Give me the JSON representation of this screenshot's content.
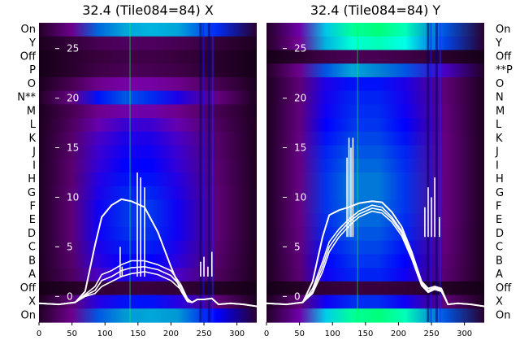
{
  "chart_data": [
    {
      "type": "heatmap",
      "title": "32.4 (Tile084=84) X",
      "xlim": [
        0,
        330
      ],
      "x_ticks": [
        "0",
        "50",
        "100",
        "150",
        "200",
        "250",
        "300"
      ],
      "overlay_y_ticks": [
        "0",
        "5",
        "10",
        "15",
        "20",
        "25"
      ],
      "overlay_ylim": [
        -2.6,
        27.6
      ],
      "row_labels": [
        "On",
        "Y",
        "Off",
        "P",
        "O",
        "N",
        "M",
        "L",
        "K",
        "J",
        "I",
        "H",
        "G",
        "F",
        "E",
        "D",
        "C",
        "B",
        "A",
        "Off",
        "X",
        "On"
      ],
      "row_label_marks": {
        "N": "** "
      },
      "colormap": [
        "#000000",
        "#3a0040",
        "#7a00a0",
        "#0000ff",
        "#0090d0",
        "#00ffff",
        "#00ff00"
      ],
      "rows": [
        {
          "label": "On",
          "levels": [
            0.1,
            0.3,
            0.62,
            0.7,
            0.72,
            0.7,
            0.55,
            0.12
          ]
        },
        {
          "label": "Y",
          "levels": [
            0.08,
            0.15,
            0.2,
            0.22,
            0.22,
            0.2,
            0.15,
            0.08
          ]
        },
        {
          "label": "Off",
          "levels": [
            0.06,
            0.12,
            0.16,
            0.18,
            0.18,
            0.16,
            0.12,
            0.06
          ]
        },
        {
          "label": "P",
          "levels": [
            0.06,
            0.12,
            0.18,
            0.2,
            0.2,
            0.18,
            0.12,
            0.06
          ]
        },
        {
          "label": "O",
          "levels": [
            0.08,
            0.2,
            0.3,
            0.34,
            0.34,
            0.3,
            0.2,
            0.08
          ]
        },
        {
          "label": "N",
          "levels": [
            0.1,
            0.28,
            0.52,
            0.6,
            0.55,
            0.46,
            0.28,
            0.08
          ]
        },
        {
          "label": "M",
          "levels": [
            0.08,
            0.2,
            0.3,
            0.35,
            0.35,
            0.3,
            0.2,
            0.08
          ]
        },
        {
          "label": "L",
          "levels": [
            0.08,
            0.22,
            0.36,
            0.42,
            0.42,
            0.36,
            0.22,
            0.08
          ]
        },
        {
          "label": "K",
          "levels": [
            0.08,
            0.24,
            0.4,
            0.46,
            0.46,
            0.4,
            0.24,
            0.08
          ]
        },
        {
          "label": "J",
          "levels": [
            0.08,
            0.24,
            0.42,
            0.48,
            0.48,
            0.42,
            0.24,
            0.08
          ]
        },
        {
          "label": "I",
          "levels": [
            0.08,
            0.25,
            0.43,
            0.5,
            0.5,
            0.43,
            0.25,
            0.08
          ]
        },
        {
          "label": "H",
          "levels": [
            0.08,
            0.25,
            0.45,
            0.52,
            0.52,
            0.45,
            0.25,
            0.08
          ]
        },
        {
          "label": "G",
          "levels": [
            0.08,
            0.26,
            0.46,
            0.54,
            0.54,
            0.46,
            0.26,
            0.08
          ]
        },
        {
          "label": "F",
          "levels": [
            0.08,
            0.26,
            0.48,
            0.56,
            0.56,
            0.48,
            0.26,
            0.08
          ]
        },
        {
          "label": "E",
          "levels": [
            0.08,
            0.26,
            0.48,
            0.56,
            0.56,
            0.48,
            0.26,
            0.08
          ]
        },
        {
          "label": "D",
          "levels": [
            0.08,
            0.26,
            0.48,
            0.55,
            0.55,
            0.48,
            0.26,
            0.08
          ]
        },
        {
          "label": "C",
          "levels": [
            0.08,
            0.25,
            0.46,
            0.53,
            0.53,
            0.46,
            0.25,
            0.08
          ]
        },
        {
          "label": "B",
          "levels": [
            0.08,
            0.24,
            0.44,
            0.5,
            0.5,
            0.44,
            0.24,
            0.08
          ]
        },
        {
          "label": "A",
          "levels": [
            0.08,
            0.22,
            0.4,
            0.46,
            0.46,
            0.4,
            0.22,
            0.08
          ]
        },
        {
          "label": "Off",
          "levels": [
            0.06,
            0.1,
            0.14,
            0.16,
            0.16,
            0.14,
            0.1,
            0.06
          ]
        },
        {
          "label": "X",
          "levels": [
            0.08,
            0.26,
            0.45,
            0.52,
            0.52,
            0.45,
            0.26,
            0.08
          ]
        },
        {
          "label": "On",
          "levels": [
            0.1,
            0.3,
            0.6,
            0.68,
            0.7,
            0.68,
            0.5,
            0.12
          ]
        }
      ],
      "level_x": [
        0,
        50,
        90,
        130,
        170,
        210,
        270,
        330
      ],
      "overlay_series": [
        {
          "x": [
            0,
            30,
            55,
            70,
            85,
            95,
            110,
            125,
            140,
            160,
            180,
            200,
            215,
            225,
            232,
            240,
            250,
            262,
            272,
            290,
            310,
            330
          ],
          "y": [
            -0.7,
            -0.8,
            -0.6,
            0.5,
            5.2,
            8.0,
            9.2,
            9.8,
            9.6,
            9.0,
            6.5,
            3.0,
            0.6,
            -0.5,
            -0.6,
            -0.3,
            -0.3,
            -0.2,
            -0.8,
            -0.7,
            -0.8,
            -1.0
          ]
        },
        {
          "x": [
            0,
            30,
            55,
            70,
            85,
            95,
            110,
            125,
            140,
            160,
            180,
            200,
            215,
            225,
            232,
            240,
            250,
            262,
            272,
            290,
            310,
            330
          ],
          "y": [
            -0.7,
            -0.8,
            -0.6,
            0.2,
            1.0,
            2.2,
            2.6,
            3.2,
            3.6,
            3.6,
            3.2,
            2.6,
            1.2,
            -0.2,
            -0.6,
            -0.3,
            -0.3,
            -0.2,
            -0.8,
            -0.7,
            -0.8,
            -1.0
          ]
        },
        {
          "x": [
            0,
            30,
            55,
            70,
            85,
            95,
            110,
            125,
            140,
            160,
            180,
            200,
            215,
            225,
            232,
            240,
            250,
            262,
            272,
            290,
            310,
            330
          ],
          "y": [
            -0.7,
            -0.8,
            -0.6,
            0.1,
            0.6,
            1.6,
            2.0,
            2.6,
            2.9,
            3.0,
            2.7,
            2.1,
            1.0,
            -0.3,
            -0.6,
            -0.3,
            -0.3,
            -0.2,
            -0.8,
            -0.7,
            -0.8,
            -1.0
          ]
        },
        {
          "x": [
            0,
            30,
            55,
            70,
            85,
            95,
            110,
            125,
            140,
            160,
            180,
            200,
            215,
            225,
            232,
            240,
            250,
            262,
            272,
            290,
            310,
            330
          ],
          "y": [
            -0.7,
            -0.8,
            -0.6,
            0.0,
            0.3,
            1.0,
            1.5,
            2.0,
            2.3,
            2.5,
            2.2,
            1.6,
            0.7,
            -0.4,
            -0.6,
            -0.3,
            -0.3,
            -0.2,
            -0.8,
            -0.7,
            -0.8,
            -1.0
          ]
        }
      ]
    },
    {
      "type": "heatmap",
      "title": "32.4 (Tile084=84) Y",
      "xlim": [
        0,
        330
      ],
      "x_ticks": [
        "0",
        "50",
        "100",
        "150",
        "200",
        "250",
        "300"
      ],
      "overlay_y_ticks": [
        "0",
        "5",
        "10",
        "15",
        "20",
        "25"
      ],
      "overlay_ylim": [
        -2.6,
        27.6
      ],
      "row_labels": [
        "On",
        "Y",
        "Off",
        "P",
        "O",
        "N",
        "M",
        "L",
        "K",
        "J",
        "I",
        "H",
        "G",
        "F",
        "E",
        "D",
        "C",
        "B",
        "A",
        "Off",
        "X",
        "On"
      ],
      "row_label_marks": {
        "P": " **"
      },
      "colormap": [
        "#000000",
        "#3a0040",
        "#7a00a0",
        "#0000ff",
        "#0090d0",
        "#00ffff",
        "#00ff00"
      ],
      "rows": [
        {
          "label": "On",
          "levels": [
            0.1,
            0.35,
            0.75,
            0.9,
            0.92,
            0.88,
            0.6,
            0.12
          ]
        },
        {
          "label": "Y",
          "levels": [
            0.1,
            0.32,
            0.72,
            0.86,
            0.88,
            0.85,
            0.58,
            0.12
          ]
        },
        {
          "label": "Off",
          "levels": [
            0.06,
            0.12,
            0.18,
            0.2,
            0.2,
            0.18,
            0.12,
            0.06
          ]
        },
        {
          "label": "P",
          "levels": [
            0.1,
            0.3,
            0.6,
            0.7,
            0.65,
            0.6,
            0.4,
            0.1
          ]
        },
        {
          "label": "O",
          "levels": [
            0.08,
            0.26,
            0.46,
            0.52,
            0.52,
            0.46,
            0.26,
            0.08
          ]
        },
        {
          "label": "N",
          "levels": [
            0.08,
            0.26,
            0.47,
            0.54,
            0.54,
            0.47,
            0.26,
            0.08
          ]
        },
        {
          "label": "M",
          "levels": [
            0.08,
            0.27,
            0.48,
            0.55,
            0.55,
            0.48,
            0.27,
            0.08
          ]
        },
        {
          "label": "L",
          "levels": [
            0.08,
            0.27,
            0.5,
            0.56,
            0.56,
            0.5,
            0.27,
            0.08
          ]
        },
        {
          "label": "K",
          "levels": [
            0.08,
            0.28,
            0.52,
            0.58,
            0.58,
            0.52,
            0.28,
            0.08
          ]
        },
        {
          "label": "J",
          "levels": [
            0.08,
            0.28,
            0.54,
            0.6,
            0.6,
            0.54,
            0.28,
            0.08
          ]
        },
        {
          "label": "I",
          "levels": [
            0.08,
            0.28,
            0.55,
            0.62,
            0.62,
            0.55,
            0.28,
            0.08
          ]
        },
        {
          "label": "H",
          "levels": [
            0.08,
            0.28,
            0.56,
            0.64,
            0.64,
            0.56,
            0.28,
            0.08
          ]
        },
        {
          "label": "G",
          "levels": [
            0.08,
            0.28,
            0.56,
            0.64,
            0.64,
            0.56,
            0.28,
            0.08
          ]
        },
        {
          "label": "F",
          "levels": [
            0.08,
            0.28,
            0.56,
            0.63,
            0.63,
            0.56,
            0.28,
            0.08
          ]
        },
        {
          "label": "E",
          "levels": [
            0.08,
            0.28,
            0.55,
            0.62,
            0.62,
            0.55,
            0.28,
            0.08
          ]
        },
        {
          "label": "D",
          "levels": [
            0.08,
            0.27,
            0.54,
            0.6,
            0.6,
            0.54,
            0.27,
            0.08
          ]
        },
        {
          "label": "C",
          "levels": [
            0.08,
            0.27,
            0.52,
            0.58,
            0.58,
            0.52,
            0.27,
            0.08
          ]
        },
        {
          "label": "B",
          "levels": [
            0.08,
            0.26,
            0.5,
            0.56,
            0.56,
            0.5,
            0.26,
            0.08
          ]
        },
        {
          "label": "A",
          "levels": [
            0.08,
            0.25,
            0.48,
            0.54,
            0.54,
            0.48,
            0.25,
            0.08
          ]
        },
        {
          "label": "Off",
          "levels": [
            0.06,
            0.1,
            0.14,
            0.16,
            0.16,
            0.14,
            0.1,
            0.06
          ]
        },
        {
          "label": "X",
          "levels": [
            0.08,
            0.26,
            0.48,
            0.55,
            0.55,
            0.48,
            0.26,
            0.08
          ]
        },
        {
          "label": "On",
          "levels": [
            0.1,
            0.35,
            0.76,
            0.9,
            0.92,
            0.88,
            0.6,
            0.12
          ]
        }
      ],
      "level_x": [
        0,
        50,
        90,
        130,
        170,
        210,
        270,
        330
      ],
      "overlay_series": [
        {
          "x": [
            0,
            30,
            55,
            70,
            85,
            95,
            110,
            125,
            140,
            160,
            175,
            190,
            205,
            220,
            235,
            245,
            255,
            265,
            275,
            290,
            310,
            330
          ],
          "y": [
            -0.7,
            -0.8,
            -0.6,
            1.5,
            6.0,
            8.2,
            8.7,
            9.0,
            9.4,
            9.6,
            9.5,
            8.5,
            7.0,
            4.5,
            1.5,
            0.8,
            1.0,
            0.8,
            -0.8,
            -0.7,
            -0.8,
            -1.0
          ]
        },
        {
          "x": [
            0,
            30,
            55,
            70,
            85,
            95,
            110,
            125,
            140,
            160,
            175,
            190,
            205,
            220,
            235,
            245,
            255,
            265,
            275,
            290,
            310,
            330
          ],
          "y": [
            -0.7,
            -0.8,
            -0.6,
            0.8,
            3.5,
            5.5,
            6.8,
            7.8,
            8.6,
            9.2,
            9.0,
            8.0,
            6.6,
            4.2,
            1.3,
            0.6,
            0.9,
            0.7,
            -0.8,
            -0.7,
            -0.8,
            -1.0
          ]
        },
        {
          "x": [
            0,
            30,
            55,
            70,
            85,
            95,
            110,
            125,
            140,
            160,
            175,
            190,
            205,
            220,
            235,
            245,
            255,
            265,
            275,
            290,
            310,
            330
          ],
          "y": [
            -0.7,
            -0.8,
            -0.6,
            0.5,
            3.0,
            5.0,
            6.4,
            7.5,
            8.3,
            8.9,
            8.7,
            7.8,
            6.4,
            4.0,
            1.2,
            0.5,
            0.8,
            0.6,
            -0.8,
            -0.7,
            -0.8,
            -1.0
          ]
        },
        {
          "x": [
            0,
            30,
            55,
            70,
            85,
            95,
            110,
            125,
            140,
            160,
            175,
            190,
            205,
            220,
            235,
            245,
            255,
            265,
            275,
            290,
            310,
            330
          ],
          "y": [
            -0.7,
            -0.8,
            -0.6,
            0.3,
            2.5,
            4.5,
            6.0,
            7.1,
            8.0,
            8.6,
            8.4,
            7.5,
            6.1,
            3.8,
            1.1,
            0.4,
            0.7,
            0.5,
            -0.8,
            -0.7,
            -0.8,
            -1.0
          ]
        }
      ]
    }
  ]
}
